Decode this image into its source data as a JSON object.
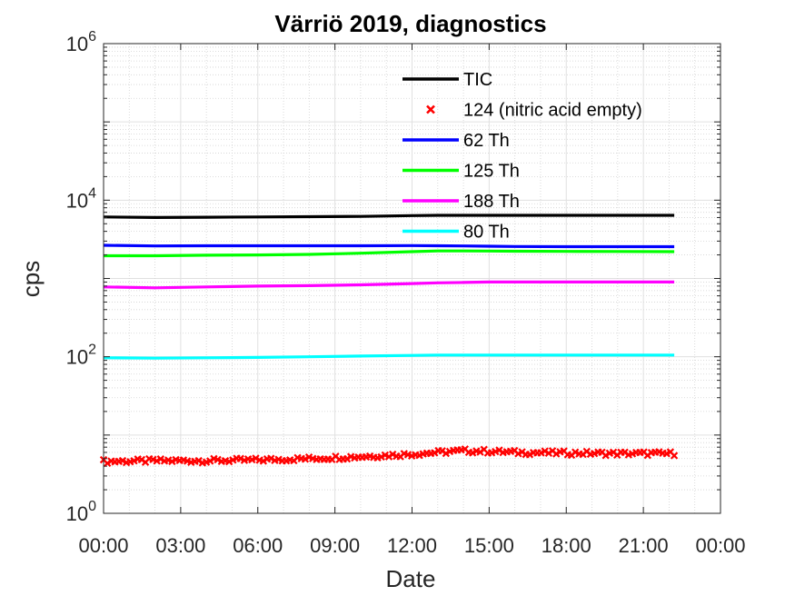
{
  "chart_data": {
    "type": "line",
    "title": "Värriö 2019, diagnostics",
    "xlabel": "Date",
    "ylabel": "cps",
    "x_tick_labels": [
      "00:00",
      "03:00",
      "06:00",
      "09:00",
      "12:00",
      "15:00",
      "18:00",
      "21:00",
      "00:00"
    ],
    "xlim_hours": [
      0,
      24
    ],
    "y_scale": "log",
    "ylim": [
      1,
      1000000
    ],
    "y_tick_labels": [
      {
        "base": "10",
        "exp": "0"
      },
      {
        "base": "10",
        "exp": "2"
      },
      {
        "base": "10",
        "exp": "4"
      },
      {
        "base": "10",
        "exp": "6"
      }
    ],
    "grid": true,
    "minor_grid": true,
    "legend_position": "top-center",
    "x_hours": [
      0,
      2,
      4,
      6,
      8,
      10,
      12,
      13,
      14,
      15,
      16,
      18,
      20,
      22.2
    ],
    "series": [
      {
        "name": "TIC",
        "color": "#000000",
        "style": "line",
        "values": [
          6100,
          6000,
          6050,
          6100,
          6150,
          6200,
          6350,
          6400,
          6400,
          6400,
          6400,
          6400,
          6400,
          6400
        ]
      },
      {
        "name": "124 (nitric acid empty)",
        "color": "#ff0000",
        "style": "markers",
        "values": [
          4.6,
          4.7,
          4.7,
          4.8,
          5.0,
          5.3,
          5.7,
          6.0,
          6.3,
          6.2,
          6.0,
          5.9,
          5.8,
          5.8
        ]
      },
      {
        "name": "62 Th",
        "color": "#0000ff",
        "style": "line",
        "values": [
          2650,
          2600,
          2620,
          2620,
          2620,
          2620,
          2630,
          2620,
          2600,
          2580,
          2560,
          2550,
          2550,
          2550
        ]
      },
      {
        "name": "125 Th",
        "color": "#00ff00",
        "style": "line",
        "values": [
          1950,
          1950,
          1980,
          2000,
          2030,
          2100,
          2200,
          2250,
          2250,
          2240,
          2230,
          2220,
          2210,
          2200
        ]
      },
      {
        "name": "188 Th",
        "color": "#ff00ff",
        "style": "line",
        "values": [
          780,
          760,
          780,
          800,
          810,
          830,
          860,
          880,
          890,
          900,
          900,
          900,
          900,
          900
        ]
      },
      {
        "name": "80 Th",
        "color": "#00ffff",
        "style": "line",
        "values": [
          97,
          96,
          97,
          98,
          100,
          102,
          104,
          105,
          105,
          105,
          105,
          105,
          105,
          105
        ]
      }
    ]
  }
}
